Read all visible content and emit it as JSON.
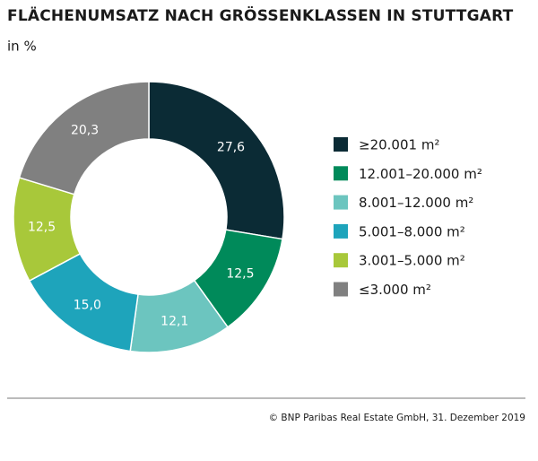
{
  "chart_data": {
    "type": "donut",
    "title": "FLÄCHENUMSATZ NACH GRÖSSENKLASSEN IN STUTTGART",
    "subtitle": "in %",
    "categories": [
      "≥20.001 m²",
      "12.001–20.000 m²",
      "8.001–12.000 m²",
      "5.001–8.000 m²",
      "3.001–5.000 m²",
      "≤3.000 m²"
    ],
    "values": [
      27.6,
      12.5,
      12.1,
      15.0,
      12.5,
      20.3
    ],
    "value_labels": [
      "27,6",
      "12,5",
      "12,1",
      "15,0",
      "12,5",
      "20,3"
    ],
    "colors": [
      "#0b2b35",
      "#008a5a",
      "#6cc5bf",
      "#1ea4bb",
      "#a8c83a",
      "#808080"
    ],
    "source": "© BNP Paribas Real Estate GmbH, 31. Dezember 2019"
  }
}
